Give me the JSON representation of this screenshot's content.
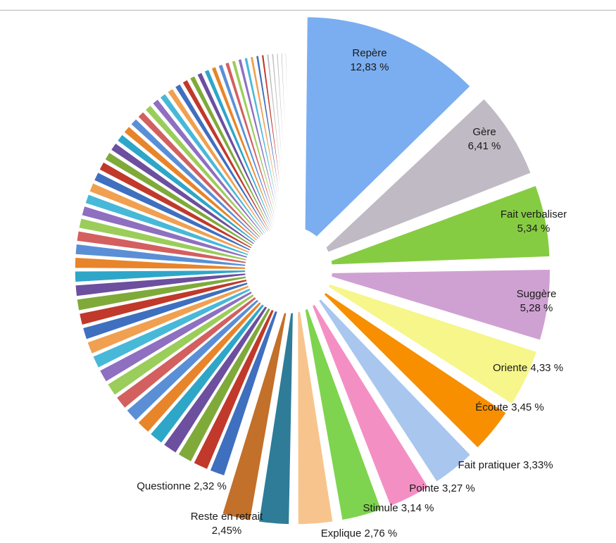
{
  "chart_data": {
    "type": "pie",
    "title": "",
    "legend": "none",
    "labeled_slices": [
      {
        "label": "Repère",
        "value_text": "12,83 %",
        "value": 12.83,
        "color": "#7aaef0"
      },
      {
        "label": "Gère",
        "value_text": "6,41 %",
        "value": 6.41,
        "color": "#c0bac4"
      },
      {
        "label": "Fait verbaliser",
        "value_text": "5,34 %",
        "value": 5.34,
        "color": "#86cc42"
      },
      {
        "label": "Suggère",
        "value_text": "5,28 %",
        "value": 5.28,
        "color": "#cfa1d2"
      },
      {
        "label": "Oriente",
        "value_text": "4,33 %",
        "value": 4.33,
        "color": "#f6f68a"
      },
      {
        "label": "Écoute",
        "value_text": "3,45 %",
        "value": 3.45,
        "color": "#f78f00"
      },
      {
        "label": "Fait pratiquer",
        "value_text": "3,33%",
        "value": 3.33,
        "color": "#a8c6ee"
      },
      {
        "label": "Pointe",
        "value_text": "3,27 %",
        "value": 3.27,
        "color": "#f48fc4"
      },
      {
        "label": "Stimule",
        "value_text": "3,14 %",
        "value": 3.14,
        "color": "#7ed44e"
      },
      {
        "label": "Explique",
        "value_text": "2,76 %",
        "value": 2.76,
        "color": "#f8c48e"
      },
      {
        "label": "Reste en retrait",
        "value_text": "2,45%",
        "value": 2.45,
        "color": "#2e7c98"
      },
      {
        "label": "Questionne",
        "value_text": "2,32 %",
        "value": 2.32,
        "color": "#c2702a"
      }
    ],
    "unlabeled_slices": {
      "description": "many small unlabeled slices filling the remaining share",
      "colors": [
        "#3f6fbf",
        "#c0392b",
        "#7faa3a",
        "#6c4f9e",
        "#2ea6c8",
        "#e8842a",
        "#5a8fd6",
        "#d35f5f",
        "#9acd5a",
        "#8e6fc0",
        "#48b8d8",
        "#f0a050",
        "#b4b4b4"
      ]
    }
  }
}
